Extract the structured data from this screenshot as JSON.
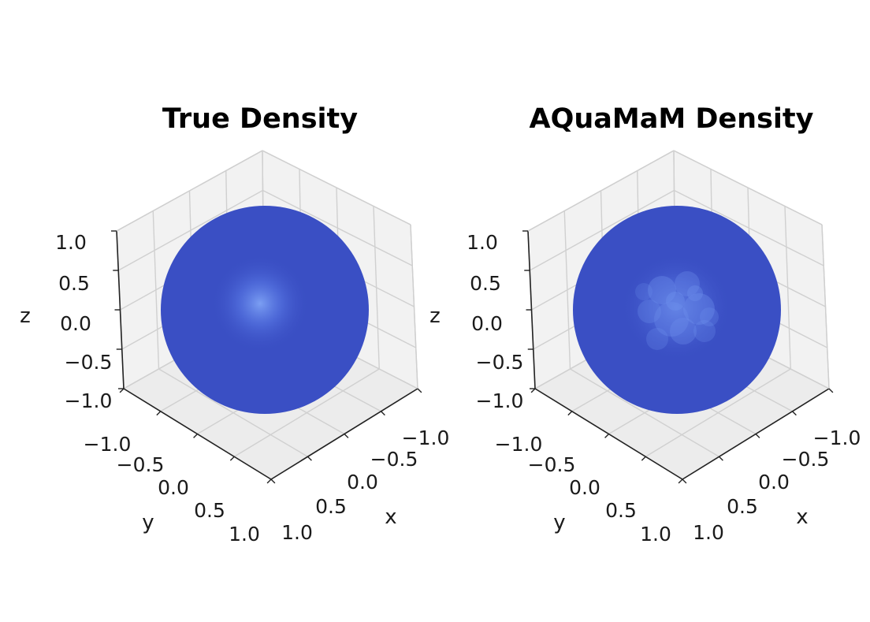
{
  "chart_data": [
    {
      "type": "surface-3d",
      "title": "True Density",
      "xlabel": "x",
      "ylabel": "y",
      "zlabel": "z",
      "xlim": [
        -1.0,
        1.0
      ],
      "ylim": [
        -1.0,
        1.0
      ],
      "zlim": [
        -1.0,
        1.0
      ],
      "x_ticks": [
        "−1.0",
        "−0.5",
        "0.0",
        "0.5",
        "1.0"
      ],
      "y_ticks": [
        "−1.0",
        "−0.5",
        "0.0",
        "0.5",
        "1.0"
      ],
      "z_ticks": [
        "−1.0",
        "−0.5",
        "0.0",
        "0.5",
        "1.0"
      ],
      "grid": true,
      "surface": "unit sphere",
      "base_color": "#3a4fc4",
      "highlight_color": "#7fa3f5"
    },
    {
      "type": "surface-3d",
      "title": "AQuaMaM Density",
      "xlabel": "x",
      "ylabel": "y",
      "zlabel": "z",
      "xlim": [
        -1.0,
        1.0
      ],
      "ylim": [
        -1.0,
        1.0
      ],
      "zlim": [
        -1.0,
        1.0
      ],
      "x_ticks": [
        "−1.0",
        "−0.5",
        "0.0",
        "0.5",
        "1.0"
      ],
      "y_ticks": [
        "−1.0",
        "−0.5",
        "0.0",
        "0.5",
        "1.0"
      ],
      "z_ticks": [
        "−1.0",
        "−0.5",
        "0.0",
        "0.5",
        "1.0"
      ],
      "grid": true,
      "surface": "unit sphere",
      "base_color": "#3a4fc4",
      "highlight_color": "#6f92ee"
    }
  ]
}
